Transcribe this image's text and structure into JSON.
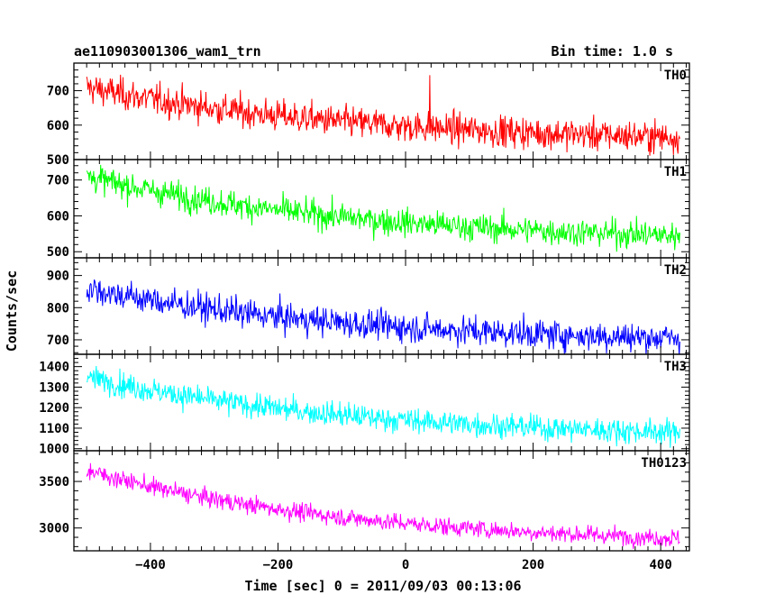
{
  "header": {
    "title": "ae110903001306_wam1_trn",
    "bin_time": "Bin time: 1.0 s"
  },
  "chart_data": {
    "type": "line",
    "xlabel": "Time [sec] 0 = 2011/09/03 00:13:06",
    "ylabel": "Counts/sec",
    "xlim": [
      -520,
      445
    ],
    "x_ticks": [
      -400,
      -200,
      0,
      200,
      400
    ],
    "x_range": [
      -500,
      430
    ],
    "panels": [
      {
        "name": "TH0",
        "color": "#ff0000",
        "ylim": [
          500,
          780
        ],
        "yticks": [
          500,
          600,
          700
        ],
        "start_mean": 710,
        "end_mean": 565,
        "noise": 38,
        "spikes": [
          {
            "x": 38,
            "y": 745
          }
        ]
      },
      {
        "name": "TH1",
        "color": "#00ff00",
        "ylim": [
          483,
          757
        ],
        "yticks": [
          500,
          600,
          700
        ],
        "start_mean": 710,
        "end_mean": 545,
        "noise": 32,
        "spikes": []
      },
      {
        "name": "TH2",
        "color": "#0000ff",
        "ylim": [
          655,
          955
        ],
        "yticks": [
          700,
          800,
          900
        ],
        "start_mean": 860,
        "end_mean": 705,
        "noise": 38,
        "spikes": []
      },
      {
        "name": "TH3",
        "color": "#00ffff",
        "ylim": [
          990,
          1460
        ],
        "yticks": [
          1000,
          1100,
          1200,
          1300,
          1400
        ],
        "start_mean": 1350,
        "end_mean": 1080,
        "noise": 50,
        "spikes": []
      },
      {
        "name": "TH0123",
        "color": "#ff00ff",
        "ylim": [
          2755,
          3830
        ],
        "yticks": [
          3000,
          3500
        ],
        "start_mean": 3620,
        "end_mean": 2890,
        "noise": 80,
        "spikes": []
      }
    ]
  }
}
